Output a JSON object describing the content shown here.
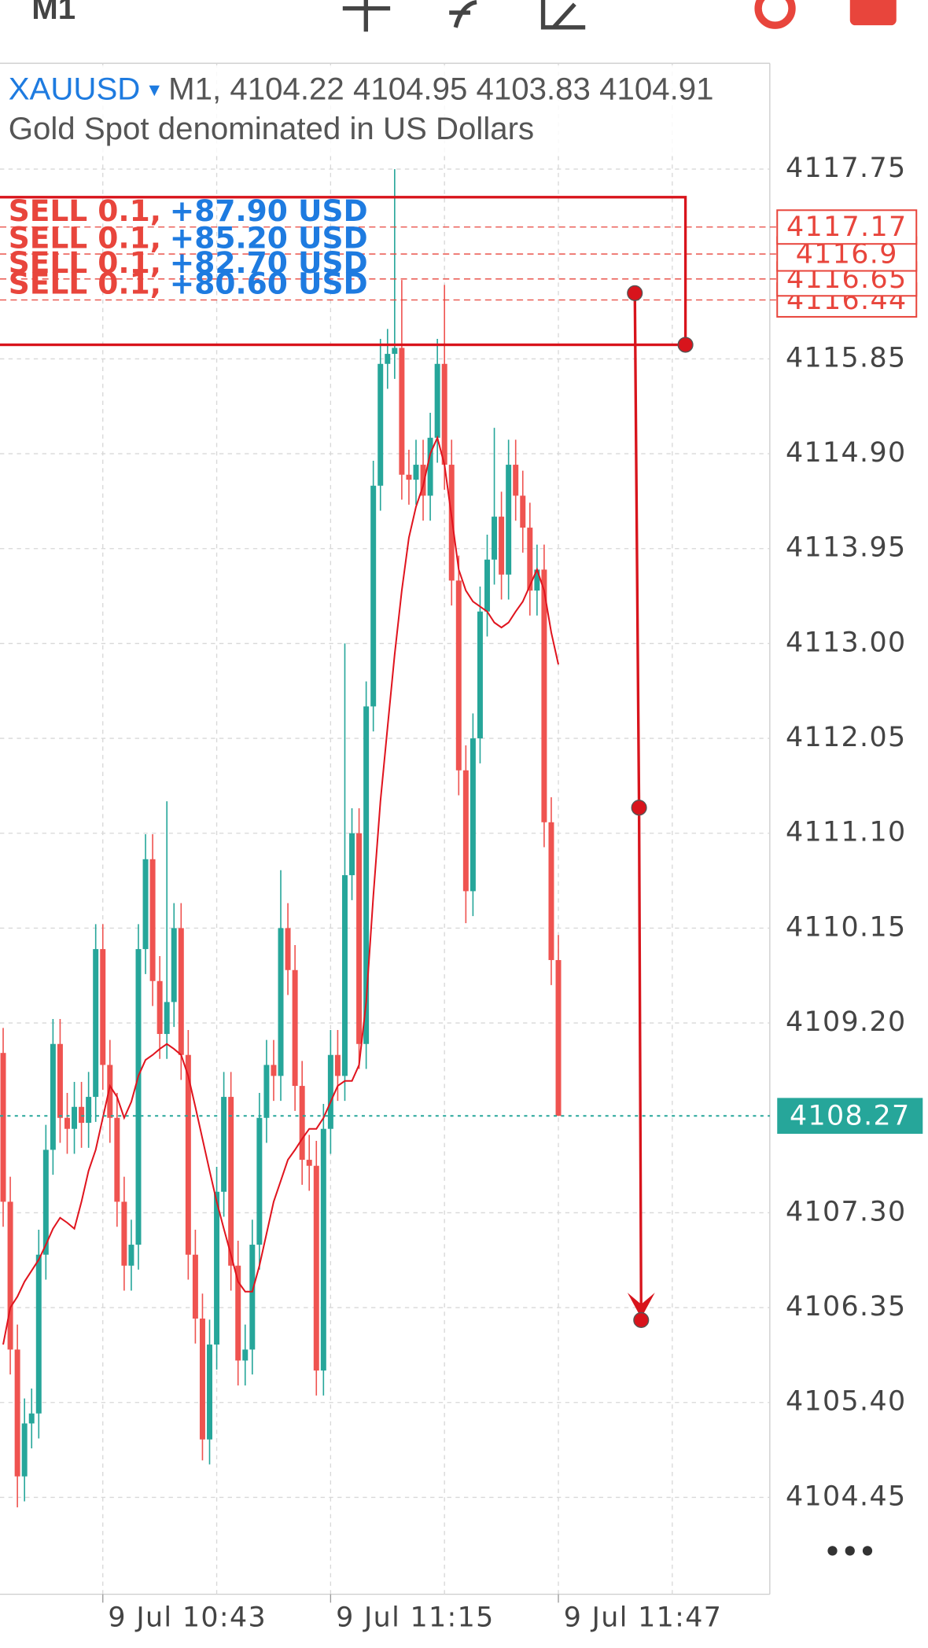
{
  "toolbar": {
    "timeframe": "M1"
  },
  "more": "•••",
  "chart_data": {
    "type": "candlestick",
    "symbol": "XAUUSD",
    "dropdown": "▾",
    "timeframe": "M1,",
    "header_ohlc": [
      4104.22,
      4104.95,
      4103.83,
      4104.91
    ],
    "subtitle": "Gold Spot denominated in US Dollars",
    "categories": [
      null,
      null,
      null,
      null,
      null,
      null,
      null,
      null,
      null,
      null,
      null,
      null,
      null,
      null,
      "9 Jul 10:43",
      null,
      null,
      null,
      null,
      null,
      null,
      null,
      null,
      null,
      null,
      null,
      null,
      null,
      null,
      null,
      null,
      null,
      null,
      null,
      null,
      null,
      null,
      null,
      null,
      null,
      null,
      null,
      null,
      null,
      null,
      null,
      "9 Jul 11:15",
      null,
      null,
      null,
      null,
      null,
      null,
      null,
      null,
      null,
      null,
      null,
      null,
      null,
      null,
      null,
      null,
      null,
      null,
      null,
      null,
      null,
      null,
      null,
      null,
      null,
      null,
      null,
      null,
      null,
      null,
      null,
      "9 Jul 11:47"
    ],
    "open": [
      4108.9,
      4107.41,
      4105.93,
      4104.66,
      4105.19,
      4105.29,
      4106.88,
      4107.93,
      4108.99,
      4108.25,
      4108.14,
      4108.36,
      4108.2,
      4108.46,
      4109.94,
      4108.78,
      4108.25,
      4107.41,
      4106.77,
      4106.98,
      4109.94,
      4110.84,
      4109.62,
      4109.09,
      4109.41,
      4110.15,
      4108.88,
      4106.88,
      4106.24,
      4105.03,
      4105.98,
      4107.51,
      4108.46,
      4106.77,
      4105.82,
      4105.93,
      4106.98,
      4108.25,
      4108.78,
      4108.67,
      4110.15,
      4109.73,
      4108.57,
      4107.83,
      4107.77,
      4105.72,
      4108.14,
      4108.88,
      4108.67,
      4110.68,
      4111.1,
      4108.99,
      4112.37,
      4114.58,
      4115.8,
      4115.9,
      4115.96,
      4114.69,
      4114.64,
      4114.79,
      4114.48,
      4115.06,
      4115.8,
      4114.79,
      4113.63,
      4111.73,
      4110.52,
      4112.05,
      4113.32,
      4113.84,
      4114.27,
      4113.69,
      4114.79,
      4114.48,
      4114.16,
      4113.53,
      4113.74,
      4111.21,
      4109.83
    ],
    "high": [
      4109.15,
      4107.66,
      4106.18,
      4105.44,
      4105.54,
      4107.13,
      4108.18,
      4109.24,
      4109.24,
      4108.5,
      4108.61,
      4108.61,
      4108.71,
      4110.19,
      4110.19,
      4109.03,
      4108.5,
      4107.66,
      4107.23,
      4110.19,
      4111.09,
      4111.09,
      4109.87,
      4111.42,
      4110.4,
      4110.4,
      4109.13,
      4107.13,
      4106.49,
      4106.23,
      4107.76,
      4108.71,
      4108.71,
      4107.02,
      4106.18,
      4107.23,
      4108.5,
      4109.03,
      4109.03,
      4110.73,
      4110.4,
      4109.98,
      4108.82,
      4108.08,
      4108.02,
      4108.39,
      4109.13,
      4109.13,
      4113.0,
      4111.35,
      4111.35,
      4112.62,
      4114.83,
      4116.05,
      4116.15,
      4117.75,
      4116.64,
      4114.94,
      4115.04,
      4115.04,
      4115.31,
      4116.05,
      4116.59,
      4115.04,
      4113.88,
      4111.98,
      4112.3,
      4113.57,
      4114.09,
      4115.16,
      4114.52,
      4115.04,
      4115.04,
      4114.73,
      4114.41,
      4113.99,
      4113.99,
      4111.46,
      4110.08
    ],
    "low": [
      4107.16,
      4105.68,
      4104.35,
      4104.41,
      4104.94,
      4105.04,
      4106.63,
      4107.68,
      4108.0,
      4107.89,
      4107.89,
      4107.95,
      4107.95,
      4108.21,
      4108.53,
      4108.0,
      4107.16,
      4106.52,
      4106.52,
      4106.73,
      4109.69,
      4109.37,
      4108.84,
      4108.84,
      4109.16,
      4108.63,
      4106.63,
      4105.99,
      4104.82,
      4104.78,
      4105.73,
      4107.26,
      4106.52,
      4105.57,
      4105.57,
      4105.68,
      4106.73,
      4108.0,
      4108.42,
      4108.42,
      4109.48,
      4108.32,
      4107.58,
      4107.52,
      4105.47,
      4105.47,
      4107.89,
      4108.42,
      4108.42,
      4110.43,
      4108.74,
      4108.74,
      4112.12,
      4114.33,
      4115.55,
      4115.65,
      4114.44,
      4114.39,
      4114.39,
      4114.23,
      4114.23,
      4114.81,
      4114.54,
      4113.38,
      4111.48,
      4110.2,
      4110.27,
      4111.8,
      4113.07,
      4113.59,
      4113.44,
      4113.44,
      4114.23,
      4113.91,
      4113.28,
      4113.28,
      4110.96,
      4109.58,
      4108.27
    ],
    "close": [
      4107.41,
      4105.93,
      4104.66,
      4105.19,
      4105.29,
      4106.88,
      4107.93,
      4108.99,
      4108.25,
      4108.14,
      4108.36,
      4108.2,
      4108.46,
      4109.94,
      4108.78,
      4108.25,
      4107.41,
      4106.77,
      4106.98,
      4109.94,
      4110.84,
      4109.62,
      4109.09,
      4109.41,
      4110.15,
      4108.88,
      4106.88,
      4106.24,
      4105.03,
      4105.98,
      4107.51,
      4108.46,
      4106.77,
      4105.82,
      4105.93,
      4106.98,
      4108.25,
      4108.78,
      4108.67,
      4110.15,
      4109.73,
      4108.57,
      4107.83,
      4107.77,
      4105.72,
      4108.14,
      4108.88,
      4108.67,
      4110.68,
      4111.1,
      4108.99,
      4112.37,
      4114.58,
      4115.8,
      4115.9,
      4115.96,
      4114.69,
      4114.64,
      4114.79,
      4114.48,
      4115.06,
      4115.8,
      4114.79,
      4113.63,
      4111.73,
      4110.52,
      4112.05,
      4113.32,
      4113.84,
      4114.27,
      4113.69,
      4114.79,
      4114.48,
      4114.16,
      4113.53,
      4113.74,
      4111.21,
      4109.83,
      4108.27
    ],
    "up_color": "#26a69a",
    "down_color": "#ef5350",
    "ma": {
      "color": "#e0141e",
      "values": [
        4105.98,
        4106.35,
        4106.46,
        4106.61,
        4106.72,
        4106.83,
        4106.98,
        4107.14,
        4107.25,
        4107.2,
        4107.14,
        4107.41,
        4107.72,
        4107.93,
        4108.25,
        4108.57,
        4108.46,
        4108.25,
        4108.41,
        4108.67,
        4108.83,
        4108.88,
        4108.94,
        4108.99,
        4108.94,
        4108.88,
        4108.67,
        4108.36,
        4108.04,
        4107.72,
        4107.41,
        4107.14,
        4106.88,
        4106.61,
        4106.51,
        4106.51,
        4106.77,
        4107.09,
        4107.41,
        4107.62,
        4107.83,
        4107.93,
        4108.04,
        4108.14,
        4108.14,
        4108.25,
        4108.41,
        4108.57,
        4108.62,
        4108.62,
        4108.78,
        4109.41,
        4110.47,
        4111.42,
        4112.16,
        4112.89,
        4113.53,
        4114.06,
        4114.37,
        4114.58,
        4114.9,
        4115.06,
        4114.79,
        4114.27,
        4113.74,
        4113.53,
        4113.42,
        4113.37,
        4113.32,
        4113.21,
        4113.16,
        4113.21,
        4113.32,
        4113.42,
        4113.58,
        4113.74,
        4113.53,
        4113.11,
        4112.79
      ]
    },
    "ylim": [
      4103.48,
      4118.81
    ],
    "yticks": [
      4117.75,
      4115.85,
      {
        "value": 4114.9,
        "label": "4114.90"
      },
      4113.95,
      {
        "value": 4113,
        "label": "4113.00"
      },
      4112.05,
      {
        "value": 4111.1,
        "label": "4111.10"
      },
      4110.15,
      {
        "value": 4109.2,
        "label": "4109.20"
      },
      {
        "value": 4107.3,
        "label": "4107.30"
      },
      4106.35,
      {
        "value": 4105.4,
        "label": "4105.40"
      },
      4104.45
    ],
    "grid": true,
    "last_price": 4108.27,
    "positions": [
      {
        "side": "SELL 0.1,",
        "profit": "+87.90 USD",
        "price": 4117.17
      },
      {
        "side": "SELL 0.1,",
        "profit": "+85.20 USD",
        "price": 4116.9
      },
      {
        "side": "SELL 0.1,",
        "profit": "+82.70 USD",
        "price": 4116.65
      },
      {
        "side": "SELL 0.1,",
        "profit": "+80.60 USD",
        "price": 4116.44
      }
    ]
  }
}
